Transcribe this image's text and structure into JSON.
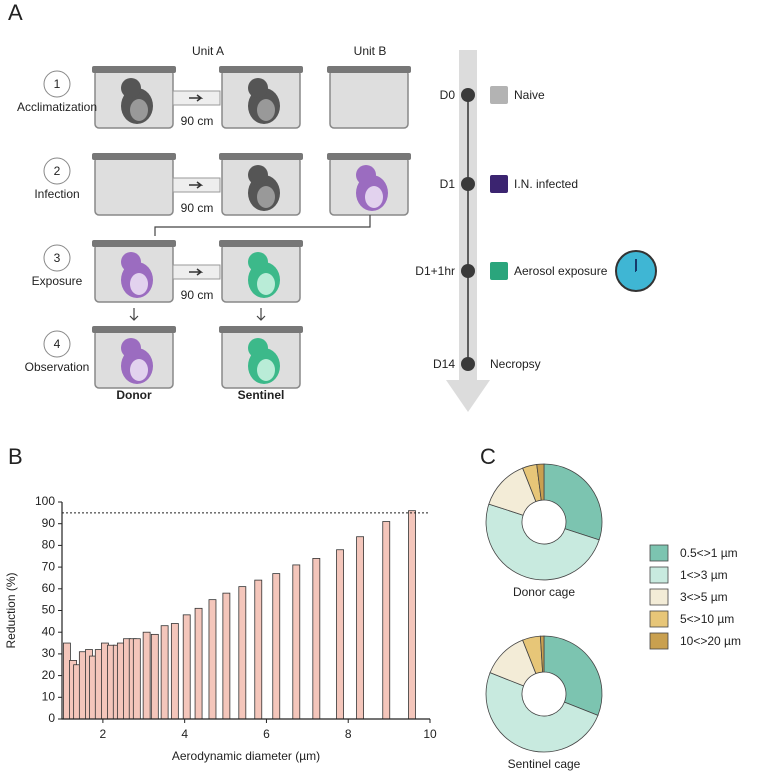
{
  "panel_a": {
    "label": "A",
    "units": [
      "Unit A",
      "Unit B"
    ],
    "steps": [
      {
        "number": "1",
        "label": "Acclimatization"
      },
      {
        "number": "2",
        "label": "Infection"
      },
      {
        "number": "3",
        "label": "Exposure"
      },
      {
        "number": "4",
        "label": "Observation"
      }
    ],
    "distance_labels": [
      "90 cm",
      "90 cm",
      "90 cm"
    ],
    "cage_labels": [
      "Donor",
      "Sentinel"
    ],
    "timeline": [
      {
        "day": "D0",
        "event": "Naive",
        "color": "#b3b3b3"
      },
      {
        "day": "D1",
        "event": "I.N. infected",
        "color": "#3b2470"
      },
      {
        "day": "D1+1hr",
        "event": "Aerosol exposure",
        "color": "#2aa57c"
      },
      {
        "day": "D14",
        "event": "Necropsy"
      }
    ]
  },
  "chart_data": [
    {
      "type": "bar",
      "panel_label": "B",
      "x_label": "Aerodynamic diameter (µm)",
      "y_label": "Reduction (%)",
      "color": "#f4c6bb",
      "x": [
        1.12,
        1.27,
        1.37,
        1.51,
        1.66,
        1.76,
        1.9,
        2.05,
        2.2,
        2.34,
        2.44,
        2.59,
        2.73,
        2.83,
        3.07,
        3.27,
        3.51,
        3.76,
        4.05,
        4.34,
        4.68,
        5.02,
        5.41,
        5.8,
        6.24,
        6.73,
        7.22,
        7.8,
        8.29,
        8.93,
        9.56
      ],
      "values": [
        35,
        27,
        25,
        31,
        32,
        29,
        32,
        35,
        34,
        34,
        35,
        37,
        37,
        37,
        40,
        39,
        43,
        44,
        48,
        51,
        55,
        58,
        61,
        64,
        67,
        71,
        74,
        78,
        84,
        91,
        96
      ],
      "xlim": [
        1,
        10
      ],
      "xticks": [
        2,
        4,
        6,
        8,
        10
      ],
      "ylim": [
        0,
        100
      ],
      "yticks": [
        0,
        10,
        20,
        30,
        40,
        50,
        60,
        70,
        80,
        90,
        100
      ],
      "reference_line": 95
    },
    {
      "type": "pie",
      "panel_label": "C",
      "categories": [
        "0.5<>1 µm",
        "1<>3 µm",
        "3<>5 µm",
        "5<>10 µm",
        "10<>20 µm"
      ],
      "colors": [
        "#7cc4b0",
        "#c8eadf",
        "#f3ecd7",
        "#e7c678",
        "#c9a04f"
      ],
      "series": [
        {
          "name": "Donor cage",
          "values": [
            30,
            50,
            14,
            4,
            2
          ]
        },
        {
          "name": "Sentinel cage",
          "values": [
            31,
            50,
            13,
            5,
            1
          ]
        }
      ]
    }
  ]
}
